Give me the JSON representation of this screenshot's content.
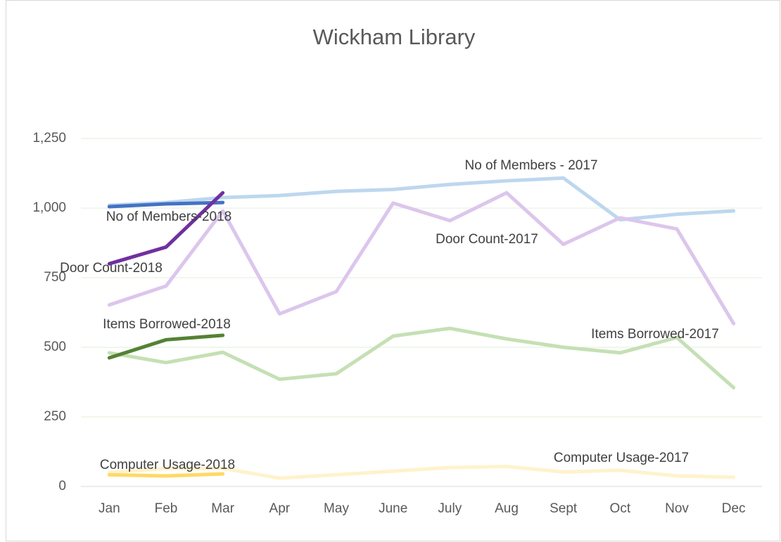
{
  "chart_data": {
    "type": "line",
    "title": "Wickham Library",
    "categories": [
      "Jan",
      "Feb",
      "Mar",
      "Apr",
      "May",
      "June",
      "July",
      "Aug",
      "Sept",
      "Oct",
      "Nov",
      "Dec"
    ],
    "ylim": [
      0,
      1250
    ],
    "yticks": [
      0,
      250,
      500,
      750,
      {
        "value": 1000,
        "label": "1,000"
      },
      {
        "value": 1250,
        "label": "1,250"
      }
    ],
    "grid": true,
    "series": [
      {
        "name": "No of Members - 2017",
        "color": "#bdd7ee",
        "values": [
          1010,
          1020,
          1038,
          1045,
          1060,
          1067,
          1085,
          1098,
          1108,
          958,
          978,
          990
        ]
      },
      {
        "name": "Door Count-2017",
        "color": "#dcc6ec",
        "values": [
          652,
          720,
          990,
          620,
          700,
          1018,
          955,
          1055,
          870,
          965,
          925,
          585
        ]
      },
      {
        "name": "Items Borrowed-2017",
        "color": "#c5e0b4",
        "values": [
          480,
          445,
          482,
          385,
          405,
          540,
          568,
          530,
          500,
          480,
          535,
          355
        ]
      },
      {
        "name": "Computer Usage-2017",
        "color": "#fff2cc",
        "values": [
          50,
          65,
          65,
          30,
          42,
          55,
          68,
          72,
          52,
          58,
          38,
          33
        ]
      },
      {
        "name": "No of Members-2018",
        "color": "#4472c4",
        "values": [
          1005,
          1015,
          1020,
          null,
          null,
          null,
          null,
          null,
          null,
          null,
          null,
          null
        ]
      },
      {
        "name": "Door Count-2018",
        "color": "#7030a0",
        "values": [
          800,
          860,
          1055,
          null,
          null,
          null,
          null,
          null,
          null,
          null,
          null,
          null
        ]
      },
      {
        "name": "Items Borrowed-2018",
        "color": "#548235",
        "values": [
          462,
          527,
          543,
          null,
          null,
          null,
          null,
          null,
          null,
          null,
          null,
          null
        ]
      },
      {
        "name": "Computer Usage-2018",
        "color": "#ffd966",
        "values": [
          42,
          38,
          45,
          null,
          null,
          null,
          null,
          null,
          null,
          null,
          null,
          null
        ]
      }
    ]
  }
}
